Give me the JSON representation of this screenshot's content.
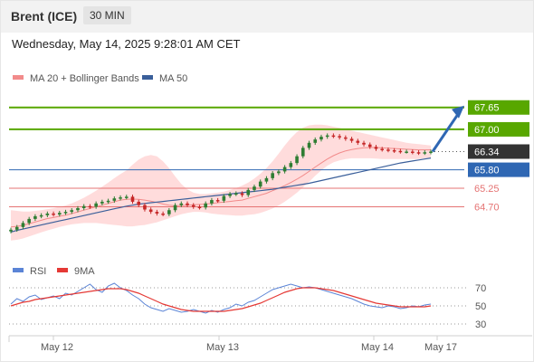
{
  "header": {
    "title": "Brent (ICE)",
    "timeframe": "30 MIN"
  },
  "timestamp": "Wednesday, May 14, 2025 9:28:01 AM CET",
  "colors": {
    "resistance": "#58a700",
    "support": "#e57373",
    "pivot": "#2f67b3",
    "current": "#333333",
    "bollinger_fill": "#ffd6d6",
    "ma20": "#f28b8b",
    "ma50": "#3a5f9a",
    "candle_up": "#2e7d32",
    "candle_down": "#c62828",
    "rsi": "#5b84d6",
    "rsi_ma": "#e53935",
    "arrow": "#2f67b3"
  },
  "chart_data": [
    {
      "type": "candlestick",
      "title": "Brent (ICE)",
      "legend": [
        {
          "name": "MA 20 + Bollinger Bands",
          "color": "#f28b8b"
        },
        {
          "name": "MA 50",
          "color": "#3a5f9a"
        }
      ],
      "x_ticks": [
        "May 12",
        "May 13",
        "May 14",
        "May 17"
      ],
      "ylim": [
        63.8,
        68.1
      ],
      "levels": [
        {
          "label": "67.65",
          "value": 67.65,
          "kind": "resistance"
        },
        {
          "label": "67.00",
          "value": 67.0,
          "kind": "resistance"
        },
        {
          "label": "66.34",
          "value": 66.34,
          "kind": "current"
        },
        {
          "label": "65.80",
          "value": 65.8,
          "kind": "pivot"
        },
        {
          "label": "65.25",
          "value": 65.25,
          "kind": "support"
        },
        {
          "label": "64.70",
          "value": 64.7,
          "kind": "support"
        }
      ],
      "close_series": [
        64.02,
        64.1,
        64.22,
        64.34,
        64.42,
        64.45,
        64.5,
        64.47,
        64.52,
        64.55,
        64.6,
        64.66,
        64.72,
        64.7,
        64.8,
        64.85,
        64.88,
        64.95,
        64.98,
        65.0,
        64.85,
        64.75,
        64.62,
        64.55,
        64.5,
        64.48,
        64.6,
        64.75,
        64.8,
        64.75,
        64.7,
        64.68,
        64.8,
        64.9,
        64.88,
        65.02,
        65.08,
        65.1,
        65.05,
        65.2,
        65.3,
        65.45,
        65.55,
        65.7,
        65.75,
        65.88,
        66.0,
        66.2,
        66.45,
        66.6,
        66.7,
        66.78,
        66.82,
        66.8,
        66.76,
        66.72,
        66.66,
        66.6,
        66.55,
        66.48,
        66.42,
        66.4,
        66.38,
        66.36,
        66.34,
        66.34,
        66.32,
        66.3,
        66.32,
        66.34
      ],
      "ma20_series": [
        64.1,
        64.12,
        64.15,
        64.2,
        64.25,
        64.3,
        64.35,
        64.38,
        64.42,
        64.45,
        64.5,
        64.55,
        64.6,
        64.65,
        64.7,
        64.75,
        64.8,
        64.85,
        64.9,
        64.92,
        64.93,
        64.92,
        64.9,
        64.87,
        64.83,
        64.78,
        64.75,
        64.73,
        64.74,
        64.75,
        64.76,
        64.77,
        64.78,
        64.8,
        64.82,
        64.84,
        64.86,
        64.88,
        64.9,
        64.95,
        65.0,
        65.05,
        65.1,
        65.18,
        65.25,
        65.33,
        65.42,
        65.52,
        65.63,
        65.75,
        65.88,
        66.0,
        66.12,
        66.22,
        66.3,
        66.36,
        66.4,
        66.43,
        66.45,
        66.46,
        66.46,
        66.45,
        66.44,
        66.43,
        66.42,
        66.41,
        66.4,
        66.39,
        66.39,
        66.39
      ],
      "ma50_series": [
        63.95,
        64.0,
        64.04,
        64.08,
        64.12,
        64.16,
        64.2,
        64.24,
        64.28,
        64.32,
        64.36,
        64.4,
        64.44,
        64.48,
        64.52,
        64.56,
        64.6,
        64.64,
        64.68,
        64.72,
        64.75,
        64.78,
        64.8,
        64.82,
        64.84,
        64.86,
        64.88,
        64.9,
        64.92,
        64.94,
        64.96,
        64.98,
        65.0,
        65.02,
        65.04,
        65.06,
        65.08,
        65.1,
        65.12,
        65.14,
        65.16,
        65.18,
        65.2,
        65.22,
        65.25,
        65.28,
        65.31,
        65.34,
        65.37,
        65.4,
        65.44,
        65.48,
        65.52,
        65.56,
        65.6,
        65.64,
        65.68,
        65.72,
        65.76,
        65.8,
        65.84,
        65.88,
        65.92,
        65.96,
        66.0,
        66.03,
        66.06,
        66.09,
        66.12,
        66.15
      ],
      "bb_upper": [
        64.6,
        64.58,
        64.56,
        64.56,
        64.58,
        64.6,
        64.63,
        64.66,
        64.7,
        64.74,
        64.8,
        64.88,
        64.97,
        65.07,
        65.18,
        65.3,
        65.42,
        65.55,
        65.67,
        65.78,
        65.95,
        66.1,
        66.2,
        66.24,
        66.2,
        66.05,
        65.85,
        65.6,
        65.38,
        65.22,
        65.12,
        65.08,
        65.08,
        65.1,
        65.12,
        65.15,
        65.2,
        65.26,
        65.33,
        65.42,
        65.54,
        65.68,
        65.85,
        66.05,
        66.28,
        66.52,
        66.74,
        66.92,
        67.05,
        67.12,
        67.14,
        67.14,
        67.12,
        67.08,
        67.04,
        67.0,
        66.96,
        66.92,
        66.88,
        66.84,
        66.8,
        66.76,
        66.72,
        66.68,
        66.64,
        66.6,
        66.58,
        66.56,
        66.54,
        66.52
      ],
      "bb_lower": [
        63.7,
        63.72,
        63.76,
        63.82,
        63.88,
        63.94,
        64.0,
        64.05,
        64.1,
        64.14,
        64.18,
        64.2,
        64.22,
        64.22,
        64.22,
        64.2,
        64.18,
        64.16,
        64.14,
        64.12,
        64.12,
        64.14,
        64.16,
        64.2,
        64.24,
        64.3,
        64.36,
        64.42,
        64.48,
        64.52,
        64.55,
        64.55,
        64.53,
        64.5,
        64.48,
        64.46,
        64.45,
        64.44,
        64.44,
        64.46,
        64.48,
        64.52,
        64.58,
        64.65,
        64.74,
        64.85,
        64.98,
        65.12,
        65.28,
        65.44,
        65.62,
        65.78,
        65.92,
        66.02,
        66.08,
        66.12,
        66.14,
        66.14,
        66.14,
        66.14,
        66.13,
        66.12,
        66.12,
        66.12,
        66.12,
        66.12,
        66.12,
        66.12,
        66.14,
        66.16
      ],
      "forecast_target": 67.65
    },
    {
      "type": "line",
      "title": "RSI",
      "legend": [
        {
          "name": "RSI",
          "color": "#5b84d6"
        },
        {
          "name": "9MA",
          "color": "#e53935"
        }
      ],
      "ylim": [
        20,
        80
      ],
      "y_ticks": [
        "70",
        "50",
        "30"
      ],
      "y_tick_values": [
        70,
        50,
        30
      ],
      "series": [
        {
          "name": "RSI",
          "values": [
            52,
            58,
            55,
            60,
            62,
            57,
            59,
            61,
            58,
            64,
            62,
            66,
            70,
            74,
            68,
            65,
            72,
            75,
            70,
            67,
            62,
            58,
            52,
            48,
            46,
            44,
            47,
            45,
            43,
            44,
            46,
            44,
            42,
            45,
            43,
            46,
            48,
            52,
            50,
            54,
            56,
            60,
            64,
            68,
            70,
            72,
            74,
            72,
            70,
            71,
            70,
            68,
            66,
            64,
            62,
            60,
            58,
            55,
            52,
            50,
            49,
            48,
            50,
            49,
            47,
            48,
            50,
            49,
            51,
            52
          ]
        },
        {
          "name": "9MA",
          "values": [
            50,
            52,
            54,
            55,
            57,
            58,
            59,
            60,
            61,
            62,
            63,
            64,
            65,
            66,
            67,
            68,
            69,
            69,
            69,
            68,
            66,
            64,
            61,
            58,
            55,
            52,
            50,
            48,
            46,
            45,
            44,
            44,
            44,
            44,
            44,
            44,
            45,
            46,
            47,
            49,
            51,
            53,
            56,
            59,
            62,
            65,
            67,
            69,
            70,
            70,
            70,
            69,
            68,
            67,
            65,
            63,
            61,
            59,
            57,
            55,
            53,
            52,
            51,
            50,
            49,
            49,
            49,
            49,
            49,
            50
          ]
        }
      ]
    }
  ]
}
